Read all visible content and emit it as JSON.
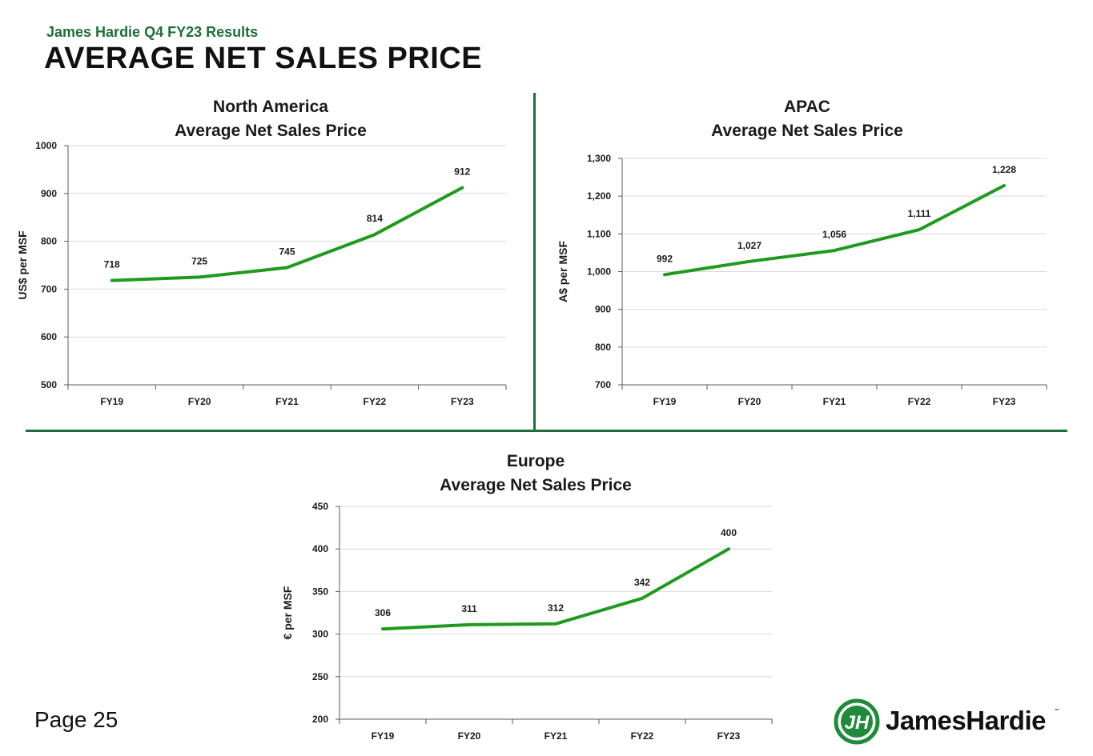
{
  "header": {
    "subtitle": "James Hardie Q4 FY23 Results",
    "title": "AVERAGE NET SALES PRICE"
  },
  "footer": {
    "page": "Page 25",
    "logo_text": "JamesHardie",
    "logo_tm": "™"
  },
  "colors": {
    "line": "#1f9a1f",
    "brand_green": "#1e6e3a",
    "grid": "#d9d9d9",
    "axis": "#595959"
  },
  "chart_data": [
    {
      "id": "north-america",
      "type": "line",
      "title_line1": "North America",
      "title_line2": "Average Net Sales Price",
      "ylabel": "US$ per MSF",
      "xlabel": "",
      "categories": [
        "FY19",
        "FY20",
        "FY21",
        "FY22",
        "FY23"
      ],
      "values": [
        718,
        725,
        745,
        814,
        912
      ],
      "data_labels": [
        "718",
        "725",
        "745",
        "814",
        "912"
      ],
      "ylim": [
        500,
        1000
      ],
      "yticks": [
        500,
        600,
        700,
        800,
        900,
        1000
      ],
      "ytick_labels": [
        "500",
        "600",
        "700",
        "800",
        "900",
        "1000"
      ],
      "grid": true,
      "legend": "none"
    },
    {
      "id": "apac",
      "type": "line",
      "title_line1": "APAC",
      "title_line2": "Average Net Sales Price",
      "ylabel": "A$ per MSF",
      "xlabel": "",
      "categories": [
        "FY19",
        "FY20",
        "FY21",
        "FY22",
        "FY23"
      ],
      "values": [
        992,
        1027,
        1056,
        1111,
        1228
      ],
      "data_labels": [
        "992",
        "1,027",
        "1,056",
        "1,111",
        "1,228"
      ],
      "ylim": [
        700,
        1300
      ],
      "yticks": [
        700,
        800,
        900,
        1000,
        1100,
        1200,
        1300
      ],
      "ytick_labels": [
        "700",
        "800",
        "900",
        "1,000",
        "1,100",
        "1,200",
        "1,300"
      ],
      "grid": true,
      "legend": "none"
    },
    {
      "id": "europe",
      "type": "line",
      "title_line1": "Europe",
      "title_line2": "Average Net Sales Price",
      "ylabel": "€ per MSF",
      "xlabel": "",
      "categories": [
        "FY19",
        "FY20",
        "FY21",
        "FY22",
        "FY23"
      ],
      "values": [
        306,
        311,
        312,
        342,
        400
      ],
      "data_labels": [
        "306",
        "311",
        "312",
        "342",
        "400"
      ],
      "ylim": [
        200,
        450
      ],
      "yticks": [
        200,
        250,
        300,
        350,
        400,
        450
      ],
      "ytick_labels": [
        "200",
        "250",
        "300",
        "350",
        "400",
        "450"
      ],
      "grid": true,
      "legend": "none"
    }
  ]
}
